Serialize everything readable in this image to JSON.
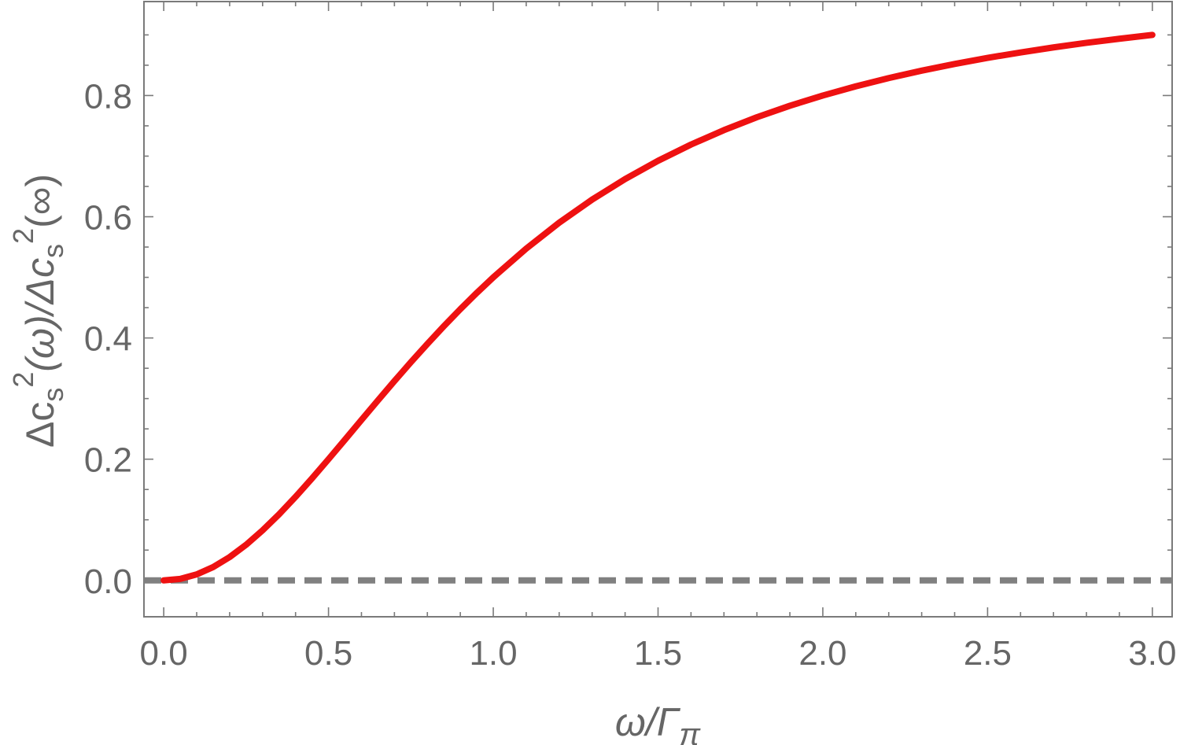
{
  "chart_data": {
    "type": "line",
    "xlabel": {
      "main": "ω/Γ",
      "sub": "π"
    },
    "ylabel": {
      "p1": "Δc",
      "s1": "s",
      "e1": "2",
      "p2": "(ω)/Δc",
      "s2": "s",
      "e2": "2",
      "p3": "(∞)"
    },
    "xlim": [
      -0.06,
      3.06
    ],
    "ylim": [
      -0.06,
      0.955
    ],
    "x_ticks": [
      "0.0",
      "0.5",
      "1.0",
      "1.5",
      "2.0",
      "2.5",
      "3.0"
    ],
    "y_ticks": [
      "0.0",
      "0.2",
      "0.4",
      "0.6",
      "0.8"
    ],
    "grid": false,
    "series": [
      {
        "color": "#ee1111",
        "style": "solid",
        "x": [
          0.0,
          0.05,
          0.1,
          0.15,
          0.2,
          0.25,
          0.3,
          0.35,
          0.4,
          0.45,
          0.5,
          0.55,
          0.6,
          0.65,
          0.7,
          0.75,
          0.8,
          0.85,
          0.9,
          0.95,
          1.0,
          1.1,
          1.2,
          1.3,
          1.4,
          1.5,
          1.6,
          1.7,
          1.8,
          1.9,
          2.0,
          2.1,
          2.2,
          2.3,
          2.4,
          2.5,
          2.6,
          2.7,
          2.8,
          2.9,
          3.0
        ],
        "values": [
          0.0,
          0.0025,
          0.0099,
          0.022,
          0.0385,
          0.0588,
          0.0826,
          0.1091,
          0.1379,
          0.1684,
          0.2,
          0.2322,
          0.2647,
          0.297,
          0.3289,
          0.36,
          0.3902,
          0.4194,
          0.4475,
          0.4744,
          0.5,
          0.5475,
          0.5902,
          0.6283,
          0.6622,
          0.6923,
          0.7191,
          0.7429,
          0.7642,
          0.7831,
          0.8,
          0.8151,
          0.8288,
          0.841,
          0.8521,
          0.8621,
          0.8711,
          0.8794,
          0.8869,
          0.8937,
          0.9
        ]
      },
      {
        "color": "#808080",
        "style": "dashed",
        "x": [
          -0.06,
          3.06
        ],
        "values": [
          0.0,
          0.0
        ]
      }
    ]
  }
}
